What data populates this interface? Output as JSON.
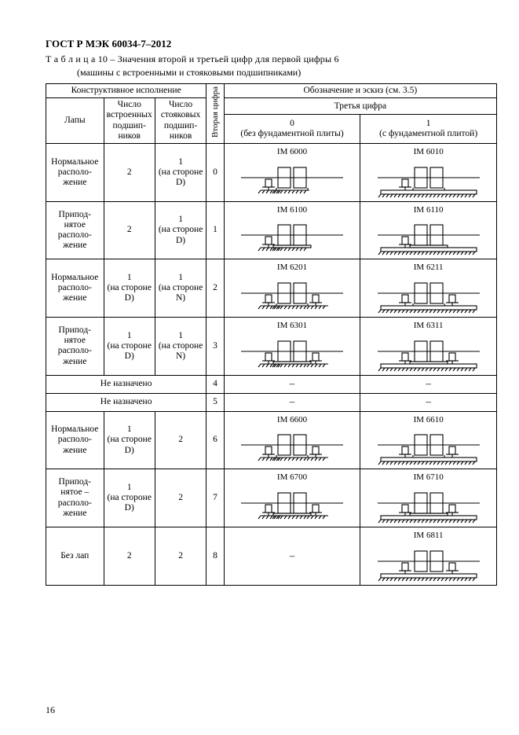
{
  "standard": "ГОСТ Р МЭК 60034-7–2012",
  "table_label": "Т а б л и ц а  10 – Значения второй и третьей цифр для первой цифры 6",
  "subtitle": "(машины с встроенными и стояковыми подшипниками)",
  "page_number": "16",
  "headers": {
    "construction": "Конструктивное исполнение",
    "designation": "Обозначение и эскиз (см. 3.5)",
    "feet": "Лапы",
    "built_in": "Число встроенных подшип-ников",
    "pedestal": "Число стояковых подшип-ников",
    "second_digit": "Вторая цифра",
    "third_digit": "Третья цифра",
    "col0": "0\n(без фундаментной плиты)",
    "col1": "1\n(с фундаментной плитой)"
  },
  "not_assigned": "Не назначено",
  "dash": "–",
  "rows": [
    {
      "feet": "Нормальное располо-жение",
      "b": "2",
      "p": "1\n(на стороне D)",
      "d": "0",
      "im0": "IM 6000",
      "s0": "A",
      "im1": "IM 6010",
      "s1": "B"
    },
    {
      "feet": "Припод-нятое располо-жение",
      "b": "2",
      "p": "1\n(на стороне D)",
      "d": "1",
      "im0": "IM 6100",
      "s0": "Ar",
      "im1": "IM 6110",
      "s1": "Br"
    },
    {
      "feet": "Нормальное располо-жение",
      "b": "1\n(на стороне D)",
      "p": "1\n(на стороне N)",
      "d": "2",
      "im0": "IM 6201",
      "s0": "C",
      "im1": "IM 6211",
      "s1": "D"
    },
    {
      "feet": "Припод-нятое располо-жение",
      "b": "1\n(на стороне D)",
      "p": "1\n(на стороне N)",
      "d": "3",
      "im0": "IM 6301",
      "s0": "Cr",
      "im1": "IM 6311",
      "s1": "Dr"
    },
    {
      "na": true,
      "d": "4"
    },
    {
      "na": true,
      "d": "5"
    },
    {
      "feet": "Нормальное располо-жение",
      "b": "1\n(на стороне D)",
      "p": "2",
      "d": "6",
      "im0": "IM 6600",
      "s0": "E",
      "im1": "IM 6610",
      "s1": "F"
    },
    {
      "feet": "Припод-нятое – располо-жение",
      "b": "1\n(на стороне D)",
      "p": "2",
      "d": "7",
      "im0": "IM 6700",
      "s0": "Er",
      "im1": "IM 6710",
      "s1": "Fr"
    },
    {
      "feet": "Без лап",
      "b": "2",
      "p": "2",
      "d": "8",
      "im0": "",
      "s0": "-",
      "im1": "IM 6811",
      "s1": "G"
    }
  ],
  "style": {
    "stroke": "#000000",
    "stroke_width": 1.1,
    "hatch_spacing": 3,
    "background": "#ffffff"
  }
}
